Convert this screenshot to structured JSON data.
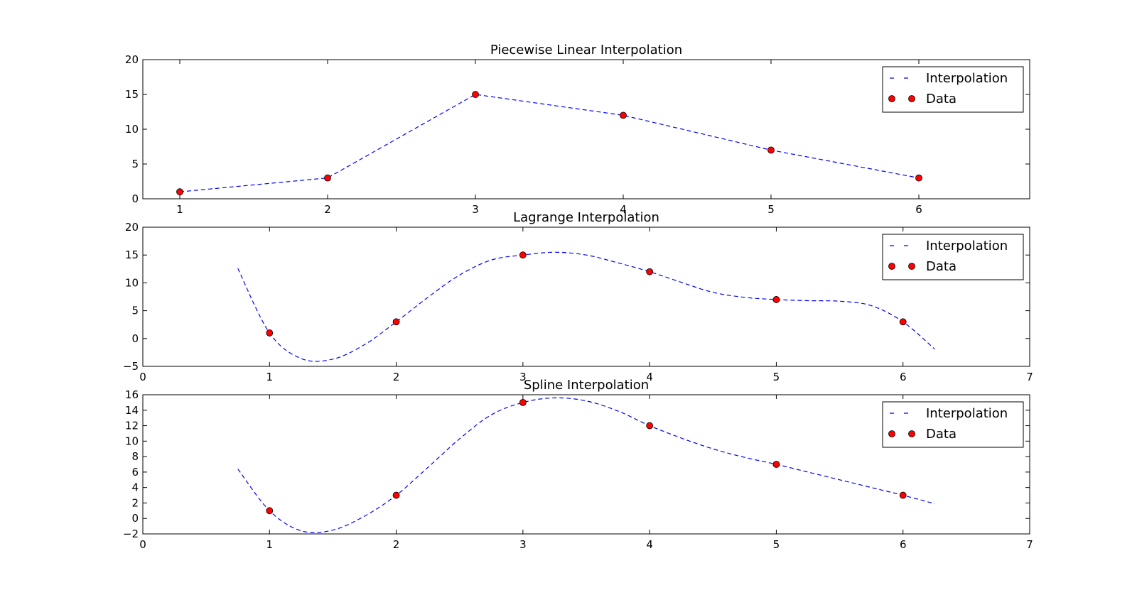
{
  "colors": {
    "line": "#0000ff",
    "marker": "#ff0000",
    "frame": "#000000"
  },
  "chart_data": [
    {
      "type": "line",
      "title": "Piecewise Linear Interpolation",
      "xlim": [
        0.75,
        6.75
      ],
      "ylim": [
        0,
        20
      ],
      "xticks": [
        1,
        2,
        3,
        4,
        5,
        6
      ],
      "yticks": [
        0,
        5,
        10,
        15,
        20
      ],
      "legend_position": "top-right",
      "series": [
        {
          "name": "Interpolation",
          "style": "dashed",
          "x": [
            1,
            2,
            3,
            4,
            5,
            6
          ],
          "y": [
            1,
            3,
            15,
            12,
            7,
            3
          ]
        },
        {
          "name": "Data",
          "style": "markers",
          "x": [
            1,
            2,
            3,
            4,
            5,
            6
          ],
          "y": [
            1,
            3,
            15,
            12,
            7,
            3
          ]
        }
      ]
    },
    {
      "type": "line",
      "title": "Lagrange Interpolation",
      "xlim": [
        0,
        7
      ],
      "ylim": [
        -5,
        20
      ],
      "xticks": [
        0,
        1,
        2,
        3,
        4,
        5,
        6,
        7
      ],
      "yticks": [
        -5,
        0,
        5,
        10,
        15,
        20
      ],
      "ytick_labels": [
        "−5",
        "0",
        "5",
        "10",
        "15",
        "20"
      ],
      "legend_position": "top-right",
      "series": [
        {
          "name": "Interpolation",
          "style": "dashed",
          "x": [
            0.75,
            1.0,
            1.25,
            1.5,
            1.75,
            2.0,
            2.25,
            2.5,
            2.75,
            3.0,
            3.25,
            3.5,
            3.75,
            4.0,
            4.25,
            4.5,
            4.75,
            5.0,
            5.25,
            5.5,
            5.75,
            6.0,
            6.25
          ],
          "y": [
            12.6,
            1.0,
            -3.6,
            -3.7,
            -1.1,
            3.0,
            7.4,
            11.4,
            14.1,
            15.0,
            15.5,
            15.0,
            13.6,
            12.0,
            10.1,
            8.3,
            7.4,
            7.0,
            6.8,
            6.7,
            5.9,
            3.0,
            -1.9
          ]
        },
        {
          "name": "Data",
          "style": "markers",
          "x": [
            1,
            2,
            3,
            4,
            5,
            6
          ],
          "y": [
            1,
            3,
            15,
            12,
            7,
            3
          ]
        }
      ]
    },
    {
      "type": "line",
      "title": "Spline Interpolation",
      "xlim": [
        0,
        7
      ],
      "ylim": [
        -2,
        16
      ],
      "xticks": [
        0,
        1,
        2,
        3,
        4,
        5,
        6,
        7
      ],
      "yticks": [
        -2,
        0,
        2,
        4,
        6,
        8,
        10,
        12,
        14,
        16
      ],
      "ytick_labels": [
        "−2",
        "0",
        "2",
        "4",
        "6",
        "8",
        "10",
        "12",
        "14",
        "16"
      ],
      "legend_position": "top-right",
      "series": [
        {
          "name": "Interpolation",
          "style": "dashed",
          "x": [
            0.75,
            1.0,
            1.25,
            1.5,
            1.75,
            2.0,
            2.25,
            2.5,
            2.75,
            3.0,
            3.25,
            3.5,
            3.75,
            4.0,
            4.25,
            4.5,
            4.75,
            5.0,
            5.25,
            5.5,
            5.75,
            6.0,
            6.25
          ],
          "y": [
            6.4,
            1.0,
            -1.6,
            -1.5,
            0.3,
            3.0,
            6.6,
            10.3,
            13.4,
            15.0,
            15.6,
            15.2,
            13.9,
            12.0,
            10.4,
            9.0,
            7.9,
            7.0,
            6.0,
            5.0,
            4.0,
            3.0,
            1.9
          ]
        },
        {
          "name": "Data",
          "style": "markers",
          "x": [
            1,
            2,
            3,
            4,
            5,
            6
          ],
          "y": [
            1,
            3,
            15,
            12,
            7,
            3
          ]
        }
      ]
    }
  ]
}
